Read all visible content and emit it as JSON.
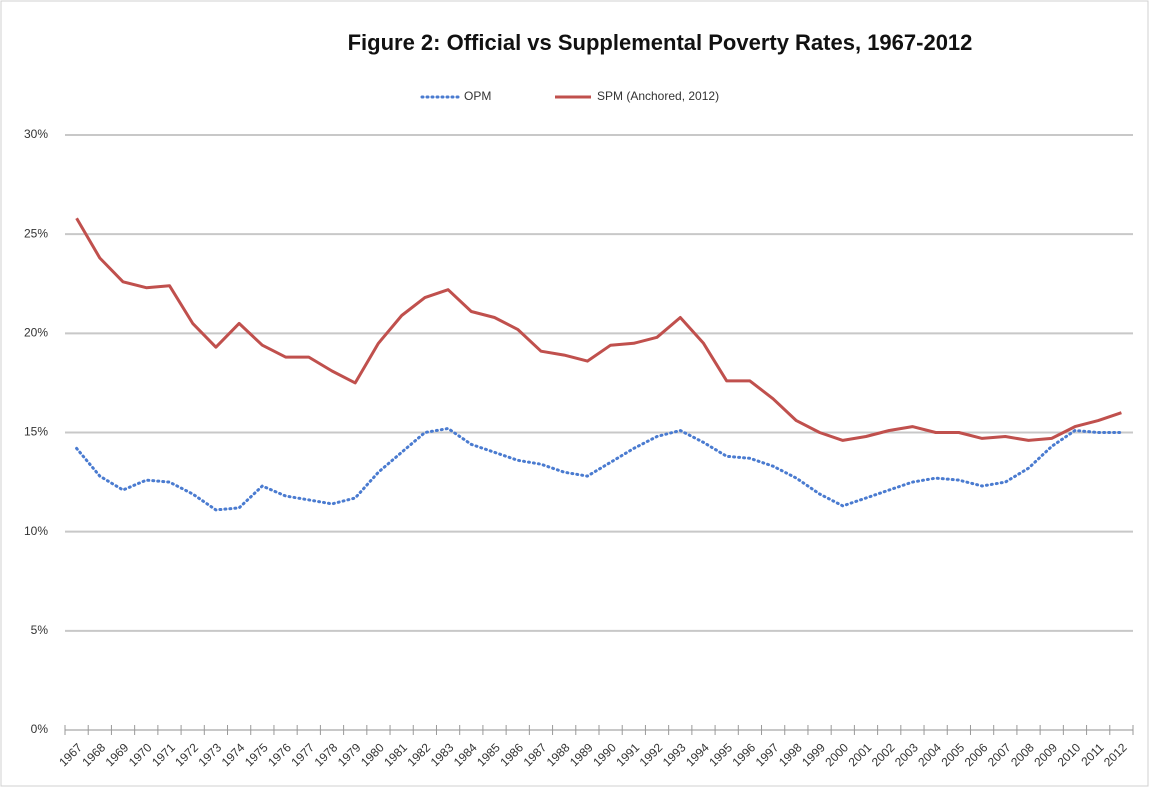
{
  "chart_data": {
    "type": "line",
    "title": "Figure 2: Official vs Supplemental Poverty Rates, 1967-2012",
    "categories": [
      "1967",
      "1968",
      "1969",
      "1970",
      "1971",
      "1972",
      "1973",
      "1974",
      "1975",
      "1976",
      "1977",
      "1978",
      "1979",
      "1980",
      "1981",
      "1982",
      "1983",
      "1984",
      "1985",
      "1986",
      "1987",
      "1988",
      "1989",
      "1990",
      "1991",
      "1992",
      "1993",
      "1994",
      "1995",
      "1996",
      "1997",
      "1998",
      "1999",
      "2000",
      "2001",
      "2002",
      "2003",
      "2004",
      "2005",
      "2006",
      "2007",
      "2008",
      "2009",
      "2010",
      "2011",
      "2012"
    ],
    "series": [
      {
        "name": "OPM",
        "color": "#4a7bd0",
        "dash": "dotted",
        "values": [
          14.2,
          12.8,
          12.1,
          12.6,
          12.5,
          11.9,
          11.1,
          11.2,
          12.3,
          11.8,
          11.6,
          11.4,
          11.7,
          13.0,
          14.0,
          15.0,
          15.2,
          14.4,
          14.0,
          13.6,
          13.4,
          13.0,
          12.8,
          13.5,
          14.2,
          14.8,
          15.1,
          14.5,
          13.8,
          13.7,
          13.3,
          12.7,
          11.9,
          11.3,
          11.7,
          12.1,
          12.5,
          12.7,
          12.6,
          12.3,
          12.5,
          13.2,
          14.3,
          15.1,
          15.0,
          15.0
        ]
      },
      {
        "name": "SPM (Anchored, 2012)",
        "color": "#c0504d",
        "dash": "solid",
        "values": [
          25.8,
          23.8,
          22.6,
          22.3,
          22.4,
          20.5,
          19.3,
          20.5,
          19.4,
          18.8,
          18.8,
          18.1,
          17.5,
          19.5,
          20.9,
          21.8,
          22.2,
          21.1,
          20.8,
          20.2,
          19.1,
          18.9,
          18.6,
          19.4,
          19.5,
          19.8,
          20.8,
          19.5,
          17.6,
          17.6,
          16.7,
          15.6,
          15.0,
          14.6,
          14.8,
          15.1,
          15.3,
          15.0,
          15.0,
          14.7,
          14.8,
          14.6,
          14.7,
          15.3,
          15.6,
          16.0
        ]
      }
    ],
    "ylim": [
      0,
      30
    ],
    "yticks": [
      {
        "value": 0,
        "label": "0%"
      },
      {
        "value": 5,
        "label": "5%"
      },
      {
        "value": 10,
        "label": "10%"
      },
      {
        "value": 15,
        "label": "15%"
      },
      {
        "value": 20,
        "label": "20%"
      },
      {
        "value": 25,
        "label": "25%"
      },
      {
        "value": 30,
        "label": "30%"
      }
    ],
    "grid": true,
    "legend": "top"
  }
}
